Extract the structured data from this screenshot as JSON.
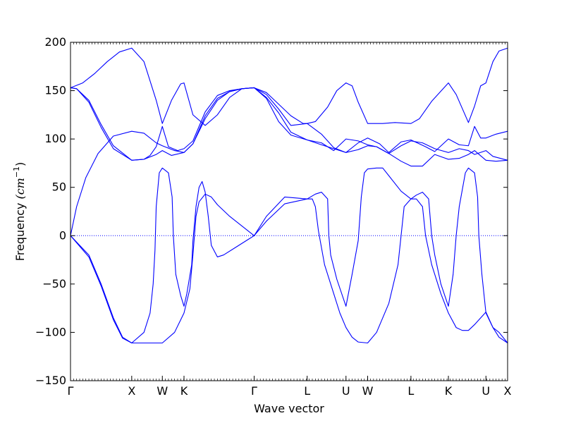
{
  "chart_data": {
    "type": "line",
    "title": "",
    "xlabel": "Wave vector",
    "ylabel": "Frequency ",
    "ylabel_unit": "(cm",
    "ylabel_unit_exp": "−1",
    "ylabel_unit_close": ")",
    "ylim": [
      -150,
      200
    ],
    "y_ticks": [
      {
        "value": 200,
        "label": "200"
      },
      {
        "value": 150,
        "label": "150"
      },
      {
        "value": 100,
        "label": "100"
      },
      {
        "value": 50,
        "label": "50"
      },
      {
        "value": 0,
        "label": "0"
      },
      {
        "value": -50,
        "label": "−50"
      },
      {
        "value": -100,
        "label": "−100"
      },
      {
        "value": -150,
        "label": "−150"
      }
    ],
    "x_path": {
      "labels": [
        "Γ",
        "X",
        "W",
        "K",
        "Γ",
        "L",
        "U",
        "W",
        "L",
        "K",
        "U",
        "X"
      ],
      "positions": [
        0.0,
        1.0,
        1.5,
        1.854,
        3.0,
        3.866,
        4.5,
        4.854,
        5.561,
        6.173,
        6.786,
        7.14
      ]
    },
    "zero_line": {
      "y": 0,
      "style": "dotted",
      "color": "#0000ff"
    },
    "line_color": "#0000ff",
    "grid": false,
    "legend": "none",
    "series": [
      {
        "points": [
          [
            0,
            153
          ],
          [
            0.2,
            158
          ],
          [
            0.4,
            168
          ],
          [
            0.6,
            180
          ],
          [
            0.8,
            190
          ],
          [
            1.0,
            194
          ],
          [
            1.2,
            180
          ],
          [
            1.4,
            140
          ],
          [
            1.5,
            116
          ],
          [
            1.65,
            140
          ],
          [
            1.8,
            157
          ],
          [
            1.854,
            158
          ],
          [
            2.0,
            125
          ],
          [
            2.2,
            114
          ],
          [
            2.4,
            125
          ],
          [
            2.6,
            143
          ],
          [
            2.8,
            152
          ],
          [
            3.0,
            153
          ],
          [
            3.2,
            148
          ],
          [
            3.4,
            136
          ],
          [
            3.6,
            124
          ],
          [
            3.8,
            116
          ],
          [
            3.866,
            116
          ],
          [
            4.0,
            118
          ],
          [
            4.2,
            133
          ],
          [
            4.35,
            150
          ],
          [
            4.5,
            158
          ],
          [
            4.6,
            155
          ],
          [
            4.7,
            138
          ],
          [
            4.854,
            116
          ],
          [
            5.1,
            116
          ],
          [
            5.3,
            117
          ],
          [
            5.561,
            116
          ],
          [
            5.7,
            121
          ],
          [
            5.9,
            139
          ],
          [
            6.173,
            158
          ],
          [
            6.3,
            146
          ],
          [
            6.5,
            117
          ],
          [
            6.6,
            134
          ],
          [
            6.7,
            155
          ],
          [
            6.786,
            158
          ],
          [
            6.9,
            180
          ],
          [
            7.0,
            191
          ],
          [
            7.14,
            194
          ]
        ]
      },
      {
        "points": [
          [
            0,
            153
          ],
          [
            0.1,
            152
          ],
          [
            0.3,
            140
          ],
          [
            0.5,
            115
          ],
          [
            0.7,
            93
          ],
          [
            1.0,
            78
          ],
          [
            1.2,
            79
          ],
          [
            1.3,
            83
          ],
          [
            1.4,
            92
          ],
          [
            1.5,
            113
          ],
          [
            1.6,
            92
          ],
          [
            1.75,
            88
          ],
          [
            1.854,
            90
          ],
          [
            2.0,
            98
          ],
          [
            2.2,
            128
          ],
          [
            2.4,
            145
          ],
          [
            2.6,
            150
          ],
          [
            2.8,
            152
          ],
          [
            3.0,
            153
          ],
          [
            3.2,
            146
          ],
          [
            3.4,
            131
          ],
          [
            3.6,
            114
          ],
          [
            3.866,
            116
          ],
          [
            4.1,
            105
          ],
          [
            4.3,
            91
          ],
          [
            4.5,
            86
          ],
          [
            4.7,
            96
          ],
          [
            4.854,
            101
          ],
          [
            5.05,
            95
          ],
          [
            5.2,
            86
          ],
          [
            5.4,
            97
          ],
          [
            5.561,
            99
          ],
          [
            5.8,
            92
          ],
          [
            5.95,
            87
          ],
          [
            6.173,
            100
          ],
          [
            6.35,
            94
          ],
          [
            6.5,
            93
          ],
          [
            6.6,
            113
          ],
          [
            6.7,
            101
          ],
          [
            6.786,
            101
          ],
          [
            6.95,
            105
          ],
          [
            7.14,
            108
          ]
        ]
      },
      {
        "points": [
          [
            0,
            153
          ],
          [
            0.1,
            152
          ],
          [
            0.3,
            138
          ],
          [
            0.5,
            112
          ],
          [
            0.7,
            90
          ],
          [
            1.0,
            78
          ],
          [
            1.2,
            79
          ],
          [
            1.4,
            84
          ],
          [
            1.5,
            88
          ],
          [
            1.65,
            83
          ],
          [
            1.854,
            86
          ],
          [
            2.0,
            95
          ],
          [
            2.2,
            124
          ],
          [
            2.4,
            142
          ],
          [
            2.6,
            149
          ],
          [
            2.8,
            152
          ],
          [
            3.0,
            153
          ],
          [
            3.2,
            143
          ],
          [
            3.4,
            127
          ],
          [
            3.6,
            107
          ],
          [
            3.866,
            99
          ],
          [
            4.1,
            96
          ],
          [
            4.3,
            88
          ],
          [
            4.5,
            100
          ],
          [
            4.7,
            98
          ],
          [
            4.854,
            94
          ],
          [
            5.0,
            92
          ],
          [
            5.2,
            85
          ],
          [
            5.4,
            93
          ],
          [
            5.561,
            98
          ],
          [
            5.75,
            96
          ],
          [
            5.95,
            90
          ],
          [
            6.173,
            86
          ],
          [
            6.35,
            90
          ],
          [
            6.5,
            88
          ],
          [
            6.6,
            84
          ],
          [
            6.786,
            88
          ],
          [
            6.9,
            82
          ],
          [
            7.14,
            78
          ]
        ]
      },
      {
        "points": [
          [
            0,
            0
          ],
          [
            0.1,
            30
          ],
          [
            0.25,
            60
          ],
          [
            0.45,
            85
          ],
          [
            0.7,
            103
          ],
          [
            1.0,
            108
          ],
          [
            1.2,
            106
          ],
          [
            1.4,
            96
          ],
          [
            1.5,
            93
          ],
          [
            1.7,
            88
          ],
          [
            1.854,
            86
          ],
          [
            2.0,
            95
          ],
          [
            2.2,
            121
          ],
          [
            2.4,
            140
          ],
          [
            2.6,
            149
          ],
          [
            2.8,
            152
          ],
          [
            3.0,
            153
          ],
          [
            3.2,
            142
          ],
          [
            3.4,
            118
          ],
          [
            3.6,
            104
          ],
          [
            3.866,
            99
          ],
          [
            4.1,
            94
          ],
          [
            4.3,
            90
          ],
          [
            4.5,
            86
          ],
          [
            4.7,
            89
          ],
          [
            4.854,
            93
          ],
          [
            5.0,
            92
          ],
          [
            5.2,
            85
          ],
          [
            5.4,
            77
          ],
          [
            5.561,
            72
          ],
          [
            5.75,
            72
          ],
          [
            5.95,
            84
          ],
          [
            6.173,
            79
          ],
          [
            6.35,
            80
          ],
          [
            6.5,
            84
          ],
          [
            6.6,
            88
          ],
          [
            6.786,
            78
          ],
          [
            6.95,
            77
          ],
          [
            7.14,
            78
          ]
        ]
      },
      {
        "points": [
          [
            0,
            0
          ],
          [
            0.3,
            -20
          ],
          [
            0.5,
            -50
          ],
          [
            0.7,
            -85
          ],
          [
            0.85,
            -105
          ],
          [
            1.0,
            -111
          ],
          [
            1.2,
            -100
          ],
          [
            1.3,
            -80
          ],
          [
            1.35,
            -50
          ],
          [
            1.38,
            -15
          ],
          [
            1.4,
            30
          ],
          [
            1.45,
            65
          ],
          [
            1.5,
            70
          ],
          [
            1.6,
            65
          ],
          [
            1.66,
            40
          ],
          [
            1.68,
            0
          ],
          [
            1.72,
            -40
          ],
          [
            1.8,
            -62
          ],
          [
            1.854,
            -73
          ],
          [
            1.9,
            -60
          ],
          [
            1.98,
            -30
          ],
          [
            2.0,
            -5
          ],
          [
            2.05,
            30
          ],
          [
            2.1,
            50
          ],
          [
            2.15,
            56
          ],
          [
            2.2,
            45
          ],
          [
            2.25,
            20
          ],
          [
            2.3,
            -10
          ],
          [
            2.4,
            -22
          ],
          [
            2.5,
            -20
          ],
          [
            2.7,
            -12
          ],
          [
            2.9,
            -4
          ],
          [
            3.0,
            0
          ],
          [
            3.2,
            20
          ],
          [
            3.5,
            40
          ],
          [
            3.866,
            38
          ],
          [
            4.0,
            43
          ],
          [
            4.1,
            45
          ],
          [
            4.2,
            38
          ],
          [
            4.22,
            0
          ],
          [
            4.25,
            -20
          ],
          [
            4.35,
            -45
          ],
          [
            4.5,
            -73
          ],
          [
            4.6,
            -40
          ],
          [
            4.7,
            -5
          ],
          [
            4.75,
            40
          ],
          [
            4.8,
            65
          ],
          [
            4.854,
            69
          ],
          [
            5.0,
            70
          ],
          [
            5.1,
            70
          ],
          [
            5.2,
            62
          ],
          [
            5.4,
            46
          ],
          [
            5.561,
            38
          ],
          [
            5.65,
            42
          ],
          [
            5.75,
            45
          ],
          [
            5.85,
            38
          ],
          [
            5.9,
            0
          ],
          [
            5.95,
            -20
          ],
          [
            6.05,
            -50
          ],
          [
            6.173,
            -73
          ],
          [
            6.25,
            -40
          ],
          [
            6.3,
            0
          ],
          [
            6.35,
            30
          ],
          [
            6.45,
            65
          ],
          [
            6.5,
            70
          ],
          [
            6.6,
            65
          ],
          [
            6.65,
            40
          ],
          [
            6.67,
            0
          ],
          [
            6.72,
            -40
          ],
          [
            6.786,
            -80
          ],
          [
            6.9,
            -95
          ],
          [
            7.0,
            -100
          ],
          [
            7.14,
            -111
          ]
        ]
      },
      {
        "points": [
          [
            0,
            0
          ],
          [
            0.3,
            -22
          ],
          [
            0.5,
            -52
          ],
          [
            0.7,
            -87
          ],
          [
            0.85,
            -106
          ],
          [
            1.0,
            -111
          ],
          [
            1.3,
            -111
          ],
          [
            1.5,
            -111
          ],
          [
            1.7,
            -100
          ],
          [
            1.854,
            -80
          ],
          [
            1.95,
            -55
          ],
          [
            2.0,
            -20
          ],
          [
            2.05,
            20
          ],
          [
            2.1,
            35
          ],
          [
            2.2,
            43
          ],
          [
            2.3,
            40
          ],
          [
            2.4,
            32
          ],
          [
            2.6,
            20
          ],
          [
            2.8,
            10
          ],
          [
            3.0,
            0
          ],
          [
            3.2,
            15
          ],
          [
            3.5,
            33
          ],
          [
            3.866,
            38
          ],
          [
            3.95,
            38
          ],
          [
            4.0,
            30
          ],
          [
            4.05,
            5
          ],
          [
            4.15,
            -30
          ],
          [
            4.3,
            -60
          ],
          [
            4.4,
            -80
          ],
          [
            4.5,
            -95
          ],
          [
            4.6,
            -105
          ],
          [
            4.7,
            -110
          ],
          [
            4.854,
            -111
          ],
          [
            5.0,
            -100
          ],
          [
            5.2,
            -70
          ],
          [
            5.35,
            -30
          ],
          [
            5.4,
            0
          ],
          [
            5.45,
            30
          ],
          [
            5.561,
            38
          ],
          [
            5.65,
            38
          ],
          [
            5.75,
            30
          ],
          [
            5.8,
            0
          ],
          [
            5.9,
            -30
          ],
          [
            6.05,
            -60
          ],
          [
            6.173,
            -80
          ],
          [
            6.3,
            -95
          ],
          [
            6.4,
            -98
          ],
          [
            6.5,
            -98
          ],
          [
            6.6,
            -92
          ],
          [
            6.786,
            -79
          ],
          [
            6.9,
            -95
          ],
          [
            7.0,
            -105
          ],
          [
            7.14,
            -111
          ]
        ]
      }
    ]
  }
}
